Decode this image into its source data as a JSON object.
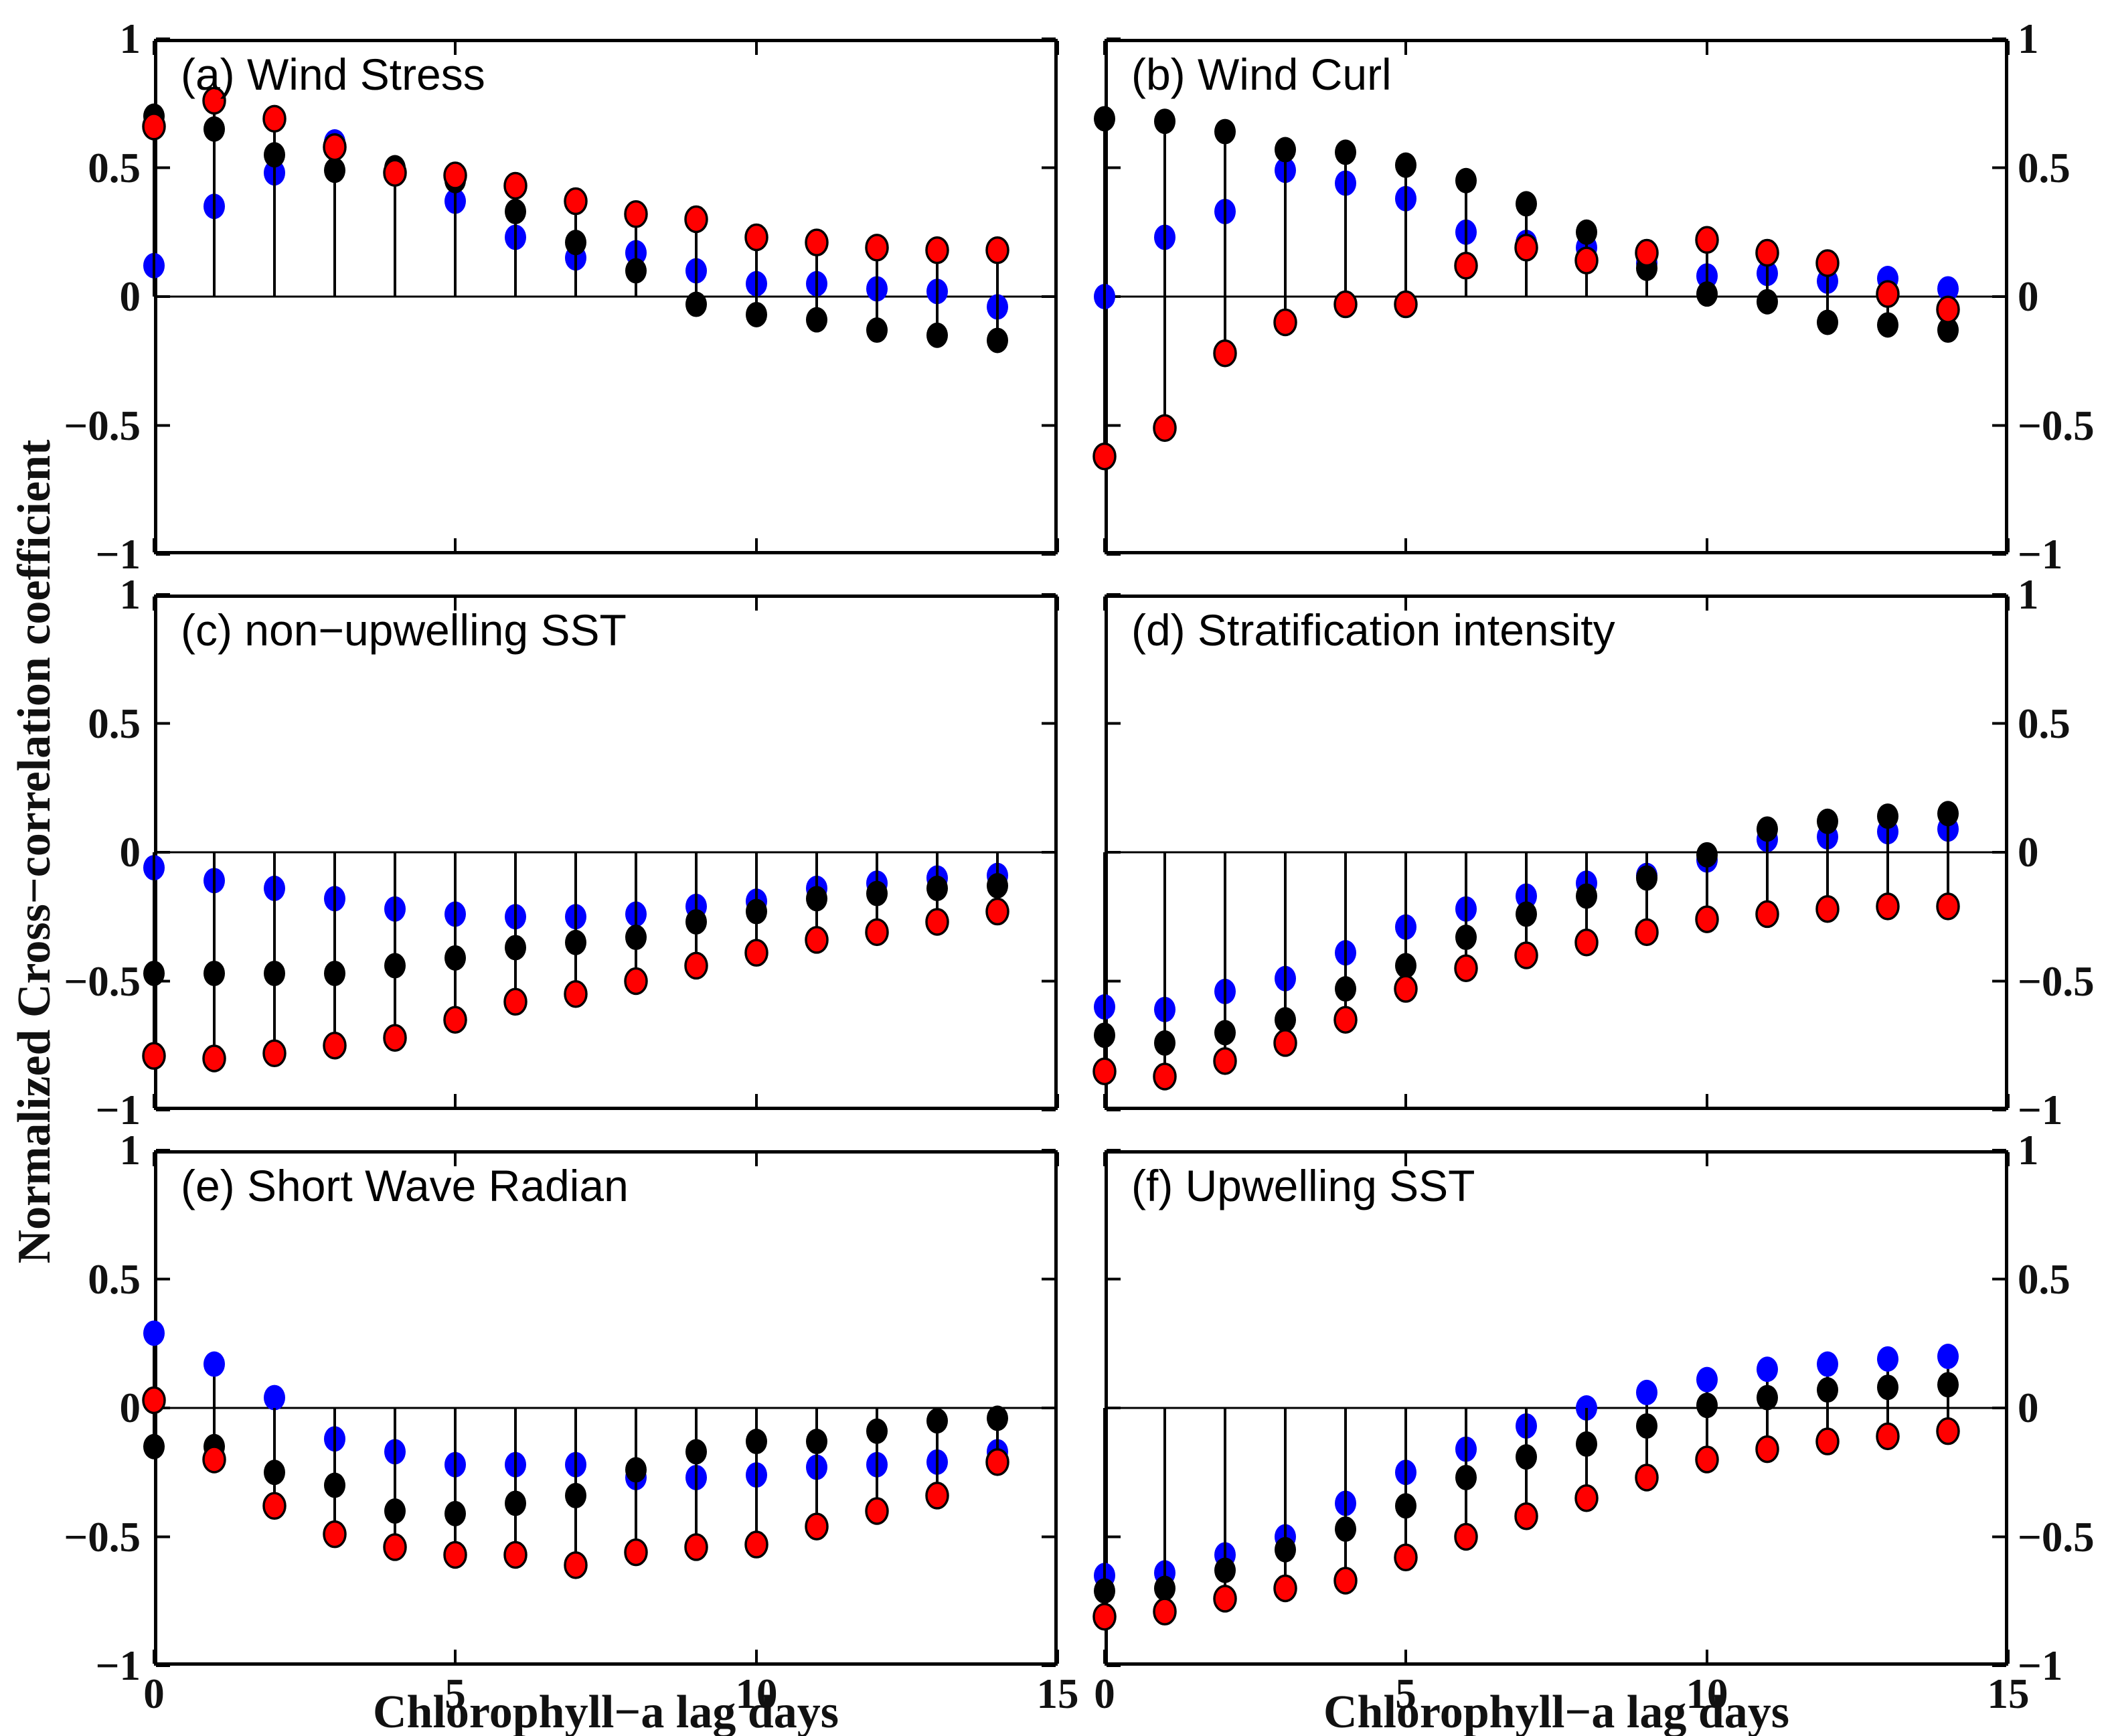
{
  "figure": {
    "ylabel": "Normalized Cross−correlation coefficient",
    "xlabel": "Chlorophyll−a lag days",
    "background": "#ffffff"
  },
  "axes": {
    "xlim": [
      0,
      15
    ],
    "ylim": [
      -1,
      1
    ],
    "xticks": [
      0,
      5,
      10,
      15
    ],
    "xtick_labels": [
      "0",
      "5",
      "10",
      "15"
    ],
    "yticks": [
      1,
      0.5,
      0,
      -0.5,
      -1
    ],
    "ytick_labels": [
      "1",
      "0.5",
      "0",
      "−0.5",
      "−1"
    ],
    "grid": "off",
    "legend": "none"
  },
  "style": {
    "stem_color": "#000000",
    "blue": "#0000ff",
    "black": "#000000",
    "red": "#ff0000",
    "red_marker_edge": "#000000"
  },
  "chart_data": {
    "type": "stem",
    "x": [
      0,
      1,
      2,
      3,
      4,
      5,
      6,
      7,
      8,
      9,
      10,
      11,
      12,
      13,
      14
    ],
    "panels": [
      {
        "id": "a",
        "title": "(a) Wind Stress",
        "series": [
          {
            "name": "blue",
            "color": "#0000ff",
            "edge": "none",
            "values": [
              0.12,
              0.35,
              0.48,
              0.6,
              0.49,
              0.37,
              0.23,
              0.15,
              0.17,
              0.1,
              0.05,
              0.05,
              0.03,
              0.02,
              -0.04
            ]
          },
          {
            "name": "black",
            "color": "#000000",
            "edge": "none",
            "values": [
              0.7,
              0.65,
              0.55,
              0.49,
              0.5,
              0.45,
              0.33,
              0.21,
              0.1,
              -0.03,
              -0.07,
              -0.09,
              -0.13,
              -0.15,
              -0.17
            ]
          },
          {
            "name": "red",
            "color": "#ff0000",
            "edge": "#000000",
            "values": [
              0.66,
              0.76,
              0.69,
              0.58,
              0.48,
              0.47,
              0.43,
              0.37,
              0.32,
              0.3,
              0.23,
              0.21,
              0.19,
              0.18,
              0.18
            ]
          }
        ]
      },
      {
        "id": "b",
        "title": "(b) Wind Curl",
        "series": [
          {
            "name": "blue",
            "color": "#0000ff",
            "edge": "none",
            "values": [
              0.0,
              0.23,
              0.33,
              0.49,
              0.44,
              0.38,
              0.25,
              0.21,
              0.19,
              0.13,
              0.08,
              0.09,
              0.06,
              0.07,
              0.03
            ]
          },
          {
            "name": "black",
            "color": "#000000",
            "edge": "none",
            "values": [
              0.69,
              0.68,
              0.64,
              0.57,
              0.56,
              0.51,
              0.45,
              0.36,
              0.25,
              0.11,
              0.01,
              -0.02,
              -0.1,
              -0.11,
              -0.13
            ]
          },
          {
            "name": "red",
            "color": "#ff0000",
            "edge": "#000000",
            "values": [
              -0.62,
              -0.51,
              -0.22,
              -0.1,
              -0.03,
              -0.03,
              0.12,
              0.19,
              0.14,
              0.17,
              0.22,
              0.17,
              0.13,
              0.01,
              -0.05
            ]
          }
        ]
      },
      {
        "id": "c",
        "title": "(c) non−upwelling SST",
        "series": [
          {
            "name": "blue",
            "color": "#0000ff",
            "edge": "none",
            "values": [
              -0.06,
              -0.11,
              -0.14,
              -0.18,
              -0.22,
              -0.24,
              -0.25,
              -0.25,
              -0.24,
              -0.21,
              -0.19,
              -0.14,
              -0.12,
              -0.1,
              -0.09
            ]
          },
          {
            "name": "black",
            "color": "#000000",
            "edge": "none",
            "values": [
              -0.47,
              -0.47,
              -0.47,
              -0.47,
              -0.44,
              -0.41,
              -0.37,
              -0.35,
              -0.33,
              -0.27,
              -0.23,
              -0.18,
              -0.16,
              -0.14,
              -0.13
            ]
          },
          {
            "name": "red",
            "color": "#ff0000",
            "edge": "#000000",
            "values": [
              -0.79,
              -0.8,
              -0.78,
              -0.75,
              -0.72,
              -0.65,
              -0.58,
              -0.55,
              -0.5,
              -0.44,
              -0.39,
              -0.34,
              -0.31,
              -0.27,
              -0.23
            ]
          }
        ]
      },
      {
        "id": "d",
        "title": "(d) Stratification intensity",
        "series": [
          {
            "name": "blue",
            "color": "#0000ff",
            "edge": "none",
            "values": [
              -0.6,
              -0.61,
              -0.54,
              -0.49,
              -0.39,
              -0.29,
              -0.22,
              -0.17,
              -0.12,
              -0.09,
              -0.03,
              0.05,
              0.06,
              0.08,
              0.09
            ]
          },
          {
            "name": "black",
            "color": "#000000",
            "edge": "none",
            "values": [
              -0.71,
              -0.74,
              -0.7,
              -0.65,
              -0.53,
              -0.44,
              -0.33,
              -0.24,
              -0.17,
              -0.1,
              -0.01,
              0.09,
              0.12,
              0.14,
              0.15
            ]
          },
          {
            "name": "red",
            "color": "#ff0000",
            "edge": "#000000",
            "values": [
              -0.85,
              -0.87,
              -0.81,
              -0.74,
              -0.65,
              -0.53,
              -0.45,
              -0.4,
              -0.35,
              -0.31,
              -0.26,
              -0.24,
              -0.22,
              -0.21,
              -0.21
            ]
          }
        ]
      },
      {
        "id": "e",
        "title": "(e) Short Wave Radian",
        "series": [
          {
            "name": "blue",
            "color": "#0000ff",
            "edge": "none",
            "values": [
              0.29,
              0.17,
              0.04,
              -0.12,
              -0.17,
              -0.22,
              -0.22,
              -0.22,
              -0.27,
              -0.27,
              -0.26,
              -0.23,
              -0.22,
              -0.21,
              -0.17
            ]
          },
          {
            "name": "black",
            "color": "#000000",
            "edge": "none",
            "values": [
              -0.15,
              -0.15,
              -0.25,
              -0.3,
              -0.4,
              -0.41,
              -0.37,
              -0.34,
              -0.24,
              -0.17,
              -0.13,
              -0.13,
              -0.09,
              -0.05,
              -0.04
            ]
          },
          {
            "name": "red",
            "color": "#ff0000",
            "edge": "#000000",
            "values": [
              0.03,
              -0.2,
              -0.38,
              -0.49,
              -0.54,
              -0.57,
              -0.57,
              -0.61,
              -0.56,
              -0.54,
              -0.53,
              -0.46,
              -0.4,
              -0.34,
              -0.21
            ]
          }
        ]
      },
      {
        "id": "f",
        "title": "(f) Upwelling SST",
        "series": [
          {
            "name": "blue",
            "color": "#0000ff",
            "edge": "none",
            "values": [
              -0.65,
              -0.64,
              -0.57,
              -0.5,
              -0.37,
              -0.25,
              -0.16,
              -0.07,
              0.0,
              0.06,
              0.11,
              0.15,
              0.17,
              0.19,
              0.2
            ]
          },
          {
            "name": "black",
            "color": "#000000",
            "edge": "none",
            "values": [
              -0.71,
              -0.7,
              -0.63,
              -0.55,
              -0.47,
              -0.38,
              -0.27,
              -0.19,
              -0.14,
              -0.07,
              0.01,
              0.04,
              0.07,
              0.08,
              0.09
            ]
          },
          {
            "name": "red",
            "color": "#ff0000",
            "edge": "#000000",
            "values": [
              -0.81,
              -0.79,
              -0.74,
              -0.7,
              -0.67,
              -0.58,
              -0.5,
              -0.42,
              -0.35,
              -0.27,
              -0.2,
              -0.16,
              -0.13,
              -0.11,
              -0.09
            ]
          }
        ]
      }
    ]
  }
}
